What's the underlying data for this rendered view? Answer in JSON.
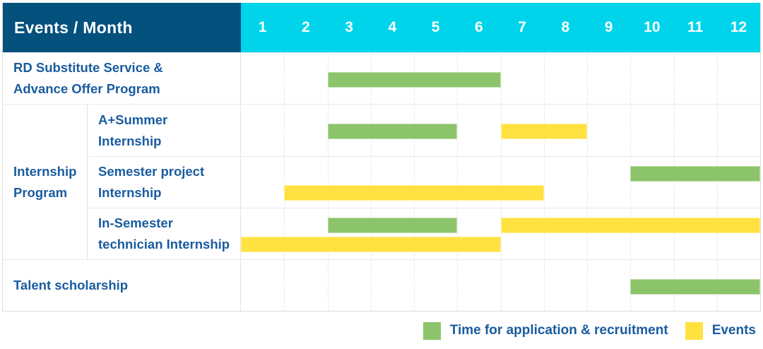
{
  "header": {
    "label": "Events / Month",
    "months": [
      "1",
      "2",
      "3",
      "4",
      "5",
      "6",
      "7",
      "8",
      "9",
      "10",
      "11",
      "12"
    ]
  },
  "colors": {
    "header_bg": "#05517E",
    "month_header_bg": "#00D4EB",
    "header_text": "#FFFFFF",
    "label_text": "#1A5C9F",
    "green": "#8BC46A",
    "yellow": "#FFE240",
    "grid_line": "#E5E5E5",
    "row_border": "#E9E9E9",
    "table_border": "#DCDCDC"
  },
  "chart_data": {
    "type": "bar",
    "subtype": "gantt",
    "title": "Events / Month",
    "xlabel": "Month",
    "x_domain": [
      1,
      12
    ],
    "grid": true,
    "legend_position": "bottom-right",
    "columns": [
      "1",
      "2",
      "3",
      "4",
      "5",
      "6",
      "7",
      "8",
      "9",
      "10",
      "11",
      "12"
    ],
    "rows": [
      {
        "group": "",
        "label": "RD Substitute Service &\nAdvance Offer Program",
        "lines": 1,
        "bars": [
          {
            "series": "Time for application & recruitment",
            "color": "green",
            "start_month": 3,
            "end_month": 6,
            "line": 1
          }
        ]
      },
      {
        "group": "Internship Program",
        "label": "A+Summer\nInternship",
        "lines": 1,
        "bars": [
          {
            "series": "Time for application & recruitment",
            "color": "green",
            "start_month": 3,
            "end_month": 5,
            "line": 1
          },
          {
            "series": "Events",
            "color": "yellow",
            "start_month": 7,
            "end_month": 8,
            "line": 1
          }
        ]
      },
      {
        "group": "Internship Program",
        "label": "Semester project\nInternship",
        "lines": 2,
        "bars": [
          {
            "series": "Time for application & recruitment",
            "color": "green",
            "start_month": 10,
            "end_month": 12,
            "line": 1
          },
          {
            "series": "Events",
            "color": "yellow",
            "start_month": 2,
            "end_month": 7,
            "line": 2
          }
        ]
      },
      {
        "group": "Internship Program",
        "label": "In-Semester\ntechnician Internship",
        "lines": 2,
        "bars": [
          {
            "series": "Time for application & recruitment",
            "color": "green",
            "start_month": 3,
            "end_month": 5,
            "line": 1
          },
          {
            "series": "Events",
            "color": "yellow",
            "start_month": 7,
            "end_month": 12,
            "line": 1
          },
          {
            "series": "Events",
            "color": "yellow",
            "start_month": 1,
            "end_month": 6,
            "line": 2
          }
        ]
      },
      {
        "group": "",
        "label": "Talent scholarship",
        "lines": 1,
        "bars": [
          {
            "series": "Time for application & recruitment",
            "color": "green",
            "start_month": 10,
            "end_month": 12,
            "line": 1
          }
        ]
      }
    ]
  },
  "legend": {
    "items": [
      {
        "label": "Time for application & recruitment",
        "color": "green",
        "hex": "#8BC46A"
      },
      {
        "label": "Events",
        "color": "yellow",
        "hex": "#FFE240"
      }
    ]
  }
}
